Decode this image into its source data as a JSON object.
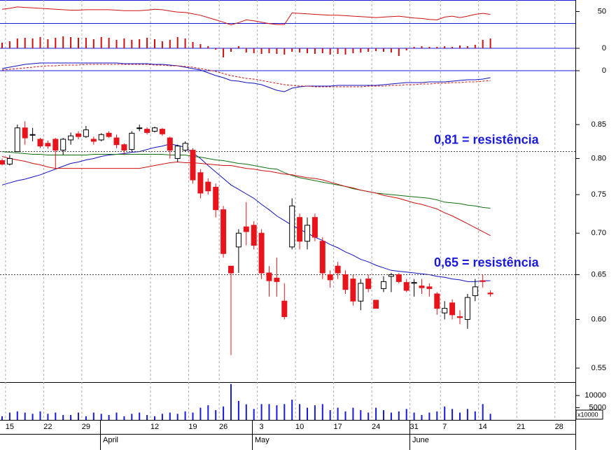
{
  "chart_data": [
    {
      "type": "line",
      "ylim": [
        25,
        75
      ],
      "yticks": [
        50
      ],
      "grid": false,
      "series": [
        {
          "color": "#d01010",
          "values": [
            55,
            57,
            60,
            59,
            58,
            57,
            56,
            55,
            54,
            53,
            53,
            54,
            54,
            54,
            54,
            53,
            52,
            52,
            52,
            53,
            55,
            54,
            51,
            49,
            48,
            45,
            42,
            37,
            32,
            27,
            21,
            26,
            32,
            30,
            27,
            24,
            22,
            22,
            47,
            46,
            45,
            44,
            43,
            42,
            42,
            41,
            40,
            39,
            38,
            37,
            38,
            39,
            40,
            38,
            36,
            35,
            33,
            32,
            38,
            40,
            37,
            40,
            44,
            46,
            44,
            null,
            null,
            null,
            null,
            null,
            null,
            null,
            null,
            null,
            null
          ]
        }
      ]
    },
    {
      "type": "bar",
      "ylim": [
        -20,
        20
      ],
      "yticks": [
        0
      ],
      "grid": true,
      "color": "#d01010",
      "values": [
        8,
        10,
        14,
        15,
        14,
        16,
        13,
        15,
        17,
        16,
        15,
        15,
        13,
        16,
        15,
        12,
        14,
        12,
        13,
        15,
        13,
        10,
        12,
        16,
        14,
        9,
        6,
        3,
        -2,
        -13,
        -5,
        3,
        -6,
        -7,
        -8,
        -7,
        -8,
        -9,
        -5,
        -6,
        -7,
        -8,
        -7,
        -9,
        -8,
        -9,
        -7,
        -6,
        -5,
        -4,
        -5,
        -6,
        -11,
        -3,
        2,
        3,
        2,
        2,
        3,
        2,
        4,
        3,
        5,
        12,
        14,
        null,
        null,
        null,
        null,
        null,
        null,
        null,
        null,
        null,
        null
      ]
    },
    {
      "type": "line",
      "ylim": [
        -40,
        40
      ],
      "yticks": [
        0
      ],
      "grid": true,
      "series": [
        {
          "color": "#1010c0",
          "values": [
            3,
            5,
            7,
            9,
            10,
            11,
            11,
            11,
            11,
            11,
            11,
            11,
            11,
            11,
            11,
            11,
            10,
            10,
            10,
            10,
            9,
            9,
            8,
            7,
            5,
            3,
            1,
            -3,
            -7,
            -10,
            -14,
            -15,
            -17,
            -18,
            -20,
            -24,
            -28,
            -30,
            -25,
            -23,
            -22,
            -22,
            -22,
            -22,
            -21,
            -21,
            -21,
            -21,
            -21,
            -21,
            -20,
            -19,
            -18,
            -17,
            -17,
            -17,
            -16,
            -16,
            -16,
            -15,
            -14,
            -13,
            -13,
            -12,
            -10,
            null,
            null,
            null,
            null,
            null,
            null,
            null,
            null,
            null,
            null
          ]
        },
        {
          "color": "#d01010",
          "dashed": true,
          "values": [
            1,
            2,
            3,
            4,
            5,
            6,
            7,
            7,
            8,
            8,
            8,
            9,
            9,
            9,
            9,
            9,
            9,
            9,
            9,
            9,
            8,
            8,
            7,
            7,
            6,
            5,
            3,
            1,
            -1,
            -4,
            -7,
            -9,
            -11,
            -12,
            -14,
            -16,
            -18,
            -20,
            -21,
            -22,
            -22,
            -23,
            -23,
            -23,
            -23,
            -23,
            -23,
            -23,
            -22,
            -22,
            -22,
            -21,
            -21,
            -20,
            -20,
            -19,
            -19,
            -18,
            -18,
            -17,
            -17,
            -16,
            -16,
            -15,
            -14,
            null,
            null,
            null,
            null,
            null,
            null,
            null,
            null,
            null,
            null
          ]
        }
      ]
    },
    {
      "type": "candlestick",
      "log_scale": true,
      "ylim": [
        0.5364,
        0.9255
      ],
      "yticks": [
        {
          "value": 0.6,
          "label": "0.60"
        },
        0.55,
        0.65,
        {
          "value": 0.7,
          "label": "0.70"
        },
        0.75,
        {
          "value": 0.8,
          "label": "0.80"
        },
        0.85
      ],
      "grid": false,
      "up_color": "#ffffff",
      "down_color": "#e8141c",
      "categories": [
        null,
        "15",
        null,
        null,
        null,
        null,
        "22",
        null,
        null,
        null,
        null,
        "29",
        null,
        null,
        null,
        null,
        null,
        null,
        null,
        null,
        "12",
        null,
        null,
        null,
        null,
        "19",
        null,
        null,
        null,
        "26",
        null,
        null,
        null,
        null,
        "3",
        null,
        null,
        null,
        null,
        "10",
        null,
        null,
        null,
        null,
        "17",
        null,
        null,
        null,
        null,
        "24",
        null,
        null,
        null,
        null,
        "31",
        null,
        null,
        null,
        "7",
        null,
        null,
        null,
        null,
        "14",
        null,
        null,
        null,
        null,
        "21",
        null,
        null,
        null,
        null,
        "28",
        null
      ],
      "months": [
        "April",
        "May",
        "June"
      ],
      "open": [
        0.797,
        0.792,
        0.81,
        0.845,
        0.835,
        0.828,
        0.822,
        0.828,
        0.812,
        0.827,
        0.836,
        0.832,
        0.828,
        0.827,
        0.837,
        0.83,
        0.82,
        0.813,
        0.845,
        0.843,
        0.84,
        0.843,
        0.83,
        0.8,
        0.812,
        0.812,
        0.78,
        0.767,
        0.76,
        0.73,
        0.66,
        0.683,
        0.708,
        0.71,
        0.7,
        0.652,
        0.646,
        0.62,
        0.683,
        0.72,
        0.69,
        0.72,
        0.69,
        0.65,
        0.66,
        0.65,
        0.645,
        0.62,
        0.645,
        0.621,
        0.634,
        0.648,
        0.65,
        0.641,
        0.64,
        0.637,
        0.636,
        0.628,
        0.607,
        0.618,
        0.603,
        0.6,
        0.626,
        0.643,
        0.629,
        null,
        null,
        null,
        null,
        null,
        null,
        null,
        null,
        null,
        null
      ],
      "high": [
        0.8,
        0.805,
        0.85,
        0.855,
        0.845,
        0.83,
        0.826,
        0.83,
        0.83,
        0.838,
        0.84,
        0.848,
        0.832,
        0.837,
        0.84,
        0.835,
        0.822,
        0.84,
        0.85,
        0.846,
        0.847,
        0.845,
        0.832,
        0.82,
        0.825,
        0.815,
        0.785,
        0.772,
        0.765,
        0.735,
        0.66,
        0.705,
        0.74,
        0.715,
        0.705,
        0.66,
        0.67,
        0.64,
        0.745,
        0.725,
        0.72,
        0.725,
        0.695,
        0.655,
        0.665,
        0.655,
        0.65,
        0.645,
        0.65,
        0.621,
        0.648,
        0.652,
        0.652,
        0.645,
        0.645,
        0.645,
        0.64,
        0.63,
        0.62,
        0.622,
        0.61,
        0.628,
        0.645,
        0.65,
        0.632,
        null,
        null,
        null,
        null,
        null,
        null,
        null,
        null,
        null,
        null
      ],
      "low": [
        0.79,
        0.79,
        0.81,
        0.82,
        0.825,
        0.815,
        0.814,
        0.785,
        0.805,
        0.82,
        0.828,
        0.83,
        0.82,
        0.825,
        0.83,
        0.815,
        0.805,
        0.81,
        0.84,
        0.835,
        0.838,
        0.833,
        0.8,
        0.795,
        0.81,
        0.765,
        0.745,
        0.75,
        0.72,
        0.67,
        0.563,
        0.652,
        0.685,
        0.68,
        0.645,
        0.625,
        0.625,
        0.6,
        0.68,
        0.68,
        0.68,
        0.69,
        0.645,
        0.635,
        0.645,
        0.628,
        0.615,
        0.61,
        0.63,
        0.612,
        0.63,
        0.63,
        0.64,
        0.63,
        0.625,
        0.628,
        0.625,
        0.605,
        0.6,
        0.6,
        0.595,
        0.59,
        0.62,
        0.635,
        0.625,
        null,
        null,
        null,
        null,
        null,
        null,
        null,
        null,
        null,
        null
      ],
      "close": [
        0.792,
        0.8,
        0.845,
        0.83,
        0.835,
        0.818,
        0.818,
        0.812,
        0.828,
        0.833,
        0.832,
        0.842,
        0.825,
        0.835,
        0.832,
        0.82,
        0.812,
        0.837,
        0.845,
        0.838,
        0.845,
        0.836,
        0.812,
        0.818,
        0.822,
        0.77,
        0.752,
        0.755,
        0.73,
        0.675,
        0.652,
        0.7,
        0.702,
        0.685,
        0.652,
        0.643,
        0.642,
        0.603,
        0.735,
        0.69,
        0.71,
        0.695,
        0.652,
        0.644,
        0.652,
        0.633,
        0.62,
        0.64,
        0.634,
        0.612,
        0.642,
        0.65,
        0.642,
        0.632,
        0.641,
        0.635,
        0.634,
        0.612,
        0.612,
        0.605,
        0.602,
        0.624,
        0.636,
        0.642,
        0.628,
        null,
        null,
        null,
        null,
        null,
        null,
        null,
        null,
        null,
        null
      ],
      "series": [
        {
          "color": "#1010c0",
          "values": [
            0.763,
            0.766,
            0.769,
            0.771,
            0.774,
            0.777,
            0.781,
            0.785,
            0.789,
            0.793,
            0.795,
            0.798,
            0.8,
            0.803,
            0.805,
            0.806,
            0.807,
            0.809,
            0.81,
            0.813,
            0.816,
            0.818,
            0.821,
            0.819,
            0.816,
            0.808,
            0.8,
            0.79,
            0.781,
            0.772,
            0.763,
            0.757,
            0.751,
            0.745,
            0.737,
            0.73,
            0.722,
            0.716,
            0.71,
            0.705,
            0.7,
            0.695,
            0.691,
            0.686,
            0.682,
            0.677,
            0.673,
            0.668,
            0.665,
            0.661,
            0.658,
            0.655,
            0.654,
            0.653,
            0.652,
            0.651,
            0.65,
            0.648,
            0.647,
            0.645,
            0.644,
            0.642,
            0.642,
            0.643,
            0.643,
            null,
            null,
            null,
            null,
            null,
            null,
            null,
            null,
            null,
            null
          ]
        },
        {
          "color": "#107010",
          "values": [
            0.81,
            0.809,
            0.808,
            0.807,
            0.806,
            0.806,
            0.805,
            0.805,
            0.805,
            0.805,
            0.805,
            0.805,
            0.806,
            0.806,
            0.806,
            0.806,
            0.806,
            0.806,
            0.806,
            0.806,
            0.806,
            0.806,
            0.805,
            0.805,
            0.805,
            0.803,
            0.802,
            0.8,
            0.798,
            0.797,
            0.795,
            0.793,
            0.792,
            0.79,
            0.788,
            0.786,
            0.785,
            0.78,
            0.776,
            0.773,
            0.771,
            0.769,
            0.767,
            0.765,
            0.763,
            0.761,
            0.758,
            0.756,
            0.754,
            0.752,
            0.751,
            0.75,
            0.749,
            0.748,
            0.747,
            0.746,
            0.745,
            0.743,
            0.74,
            0.739,
            0.738,
            0.736,
            0.735,
            0.733,
            0.732,
            null,
            null,
            null,
            null,
            null,
            null,
            null,
            null,
            null,
            null
          ]
        },
        {
          "color": "#d01010",
          "values": [
            0.803,
            0.8,
            0.798,
            0.796,
            0.793,
            0.791,
            0.788,
            0.786,
            0.786,
            0.786,
            0.786,
            0.786,
            0.786,
            0.786,
            0.786,
            0.786,
            0.786,
            0.786,
            0.786,
            0.788,
            0.79,
            0.792,
            0.794,
            0.795,
            0.794,
            0.794,
            0.793,
            0.792,
            0.791,
            0.79,
            0.79,
            0.788,
            0.786,
            0.785,
            0.783,
            0.782,
            0.78,
            0.778,
            0.777,
            0.775,
            0.773,
            0.772,
            0.77,
            0.767,
            0.764,
            0.761,
            0.759,
            0.756,
            0.754,
            0.752,
            0.749,
            0.747,
            0.745,
            0.742,
            0.739,
            0.737,
            0.734,
            0.731,
            0.726,
            0.722,
            0.717,
            0.712,
            0.707,
            0.702,
            0.697,
            null,
            null,
            null,
            null,
            null,
            null,
            null,
            null,
            null,
            null
          ]
        }
      ],
      "annotations": [
        {
          "text": "0,81 = resistência",
          "value": 0.81
        },
        {
          "text": "0,65 = resistência",
          "value": 0.65
        }
      ]
    },
    {
      "type": "bar",
      "ylim": [
        0,
        15800
      ],
      "yticks": [
        5000,
        10000
      ],
      "grid": false,
      "color": "#1a1adc",
      "unit_label": "x10000",
      "values": [
        1500,
        3000,
        3500,
        3000,
        2500,
        3500,
        2500,
        3000,
        2000,
        2000,
        3000,
        1500,
        3000,
        2500,
        2000,
        3000,
        1500,
        2500,
        3000,
        2000,
        1500,
        2500,
        3000,
        2500,
        3500,
        3000,
        5000,
        6000,
        4000,
        5500,
        14700,
        7800,
        6400,
        4500,
        6500,
        6500,
        6000,
        6500,
        8300,
        6500,
        5000,
        6000,
        6500,
        4000,
        5000,
        3500,
        5000,
        4000,
        3000,
        5000,
        4000,
        3000,
        3500,
        4500,
        3000,
        2000,
        3000,
        3500,
        5500,
        4500,
        3000,
        4500,
        3500,
        6500,
        2500,
        null,
        null,
        null,
        null,
        null,
        null,
        null,
        null,
        null,
        null
      ]
    }
  ]
}
